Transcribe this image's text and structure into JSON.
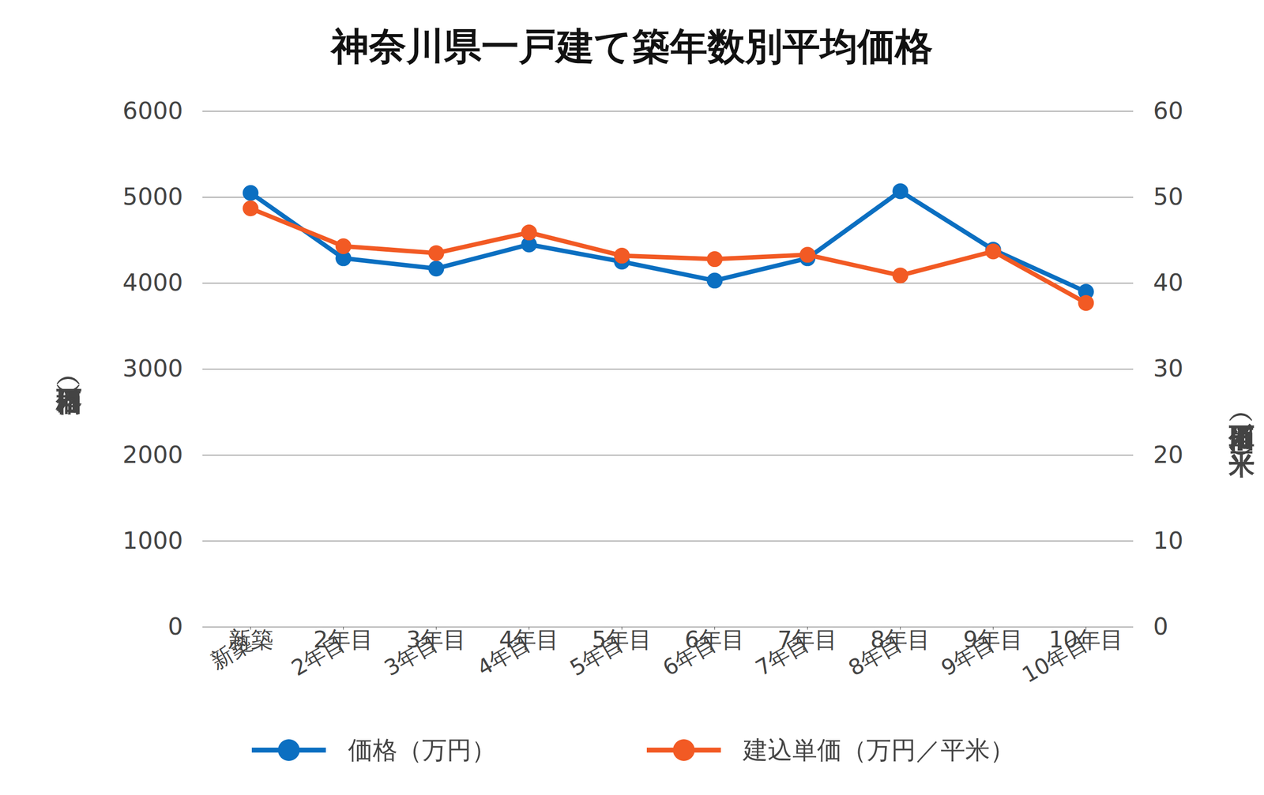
{
  "chart_data": {
    "type": "line",
    "title": "神奈川県一戸建て築年数別平均価格",
    "categories": [
      "新築",
      "2年目",
      "3年目",
      "4年目",
      "5年目",
      "6年目",
      "7年目",
      "8年目",
      "9年目",
      "10年目"
    ],
    "series": [
      {
        "name": "価格（万円）",
        "color": "#0b6fc1",
        "marker": "circle",
        "values": [
          5050,
          4290,
          4170,
          4450,
          4250,
          4030,
          4290,
          5070,
          4390,
          3900
        ]
      },
      {
        "name": "建込単価（万円／平米）",
        "color": "#f25a24",
        "marker": "circle",
        "axis": "y2",
        "values": [
          48.7,
          44.3,
          43.5,
          45.9,
          43.2,
          42.8,
          43.3,
          40.9,
          43.7,
          37.7
        ]
      }
    ],
    "ylabel": "価格（万円）",
    "y2label": "単価（万円／平米）",
    "ylim": [
      0,
      6000
    ],
    "yticks": [
      0,
      1000,
      2000,
      3000,
      4000,
      5000,
      6000
    ],
    "y2lim": [
      0,
      60
    ],
    "y2ticks": [
      0,
      10,
      20,
      30,
      40,
      50,
      60
    ],
    "grid": true,
    "legend": "bottom"
  }
}
